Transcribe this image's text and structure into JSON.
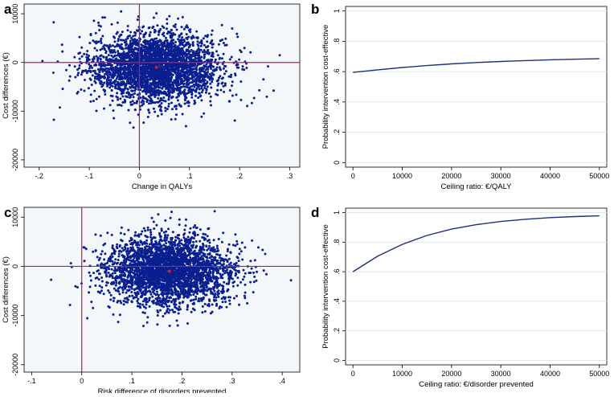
{
  "colors": {
    "scatter_point": "#0a1f8f",
    "crosshair": "#c2185b",
    "curve": "#1f2f7a",
    "mean_point": "#d0202a",
    "axis": "#000000",
    "panel_bg_cea": "#f3f7f9",
    "grid": "#dfe7ec"
  },
  "panels": [
    {
      "letter": "a"
    },
    {
      "letter": "b"
    },
    {
      "letter": "c"
    },
    {
      "letter": "d"
    }
  ],
  "chart_data": [
    {
      "type": "scatter",
      "panel": "a",
      "xlabel": "Change in QALYs",
      "ylabel": "Cost differences (€)",
      "xlim": [
        -0.23,
        0.32
      ],
      "ylim": [
        -21500,
        12000
      ],
      "xticks": [
        -0.2,
        -0.1,
        0,
        0.1,
        0.2,
        0.3
      ],
      "xtick_labels": [
        "-.2",
        "-.1",
        "0",
        ".1",
        ".2",
        ".3"
      ],
      "yticks": [
        -20000,
        -10000,
        0,
        10000
      ],
      "ytick_labels": [
        "-20000",
        "-10000",
        "0",
        "10000"
      ],
      "cloud": {
        "mean_x": 0.034,
        "mean_y": -1000,
        "sd_x": 0.065,
        "sd_y": 3500
      },
      "mean_point": {
        "x": 0.034,
        "y": -1000
      },
      "reference_lines": {
        "x": 0,
        "y": 0
      }
    },
    {
      "type": "line",
      "panel": "b",
      "xlabel": "Ceiling ratio: €/QALY",
      "ylabel": "Probability intervention cost-effective",
      "xlim": [
        -1500,
        51500
      ],
      "ylim": [
        -0.03,
        1.03
      ],
      "xticks": [
        0,
        10000,
        20000,
        30000,
        40000,
        50000
      ],
      "xtick_labels": [
        "0",
        "10000",
        "20000",
        "30000",
        "40000",
        "50000"
      ],
      "yticks": [
        0,
        0.2,
        0.4,
        0.6,
        0.8,
        1
      ],
      "ytick_labels": [
        "0",
        ".2",
        ".4",
        ".6",
        ".8",
        "1"
      ],
      "x": [
        0,
        5000,
        10000,
        15000,
        20000,
        25000,
        30000,
        35000,
        40000,
        45000,
        50000
      ],
      "y": [
        0.595,
        0.612,
        0.627,
        0.64,
        0.651,
        0.66,
        0.667,
        0.673,
        0.678,
        0.682,
        0.685
      ]
    },
    {
      "type": "scatter",
      "panel": "c",
      "xlabel": "Risk difference of disorders prevented",
      "ylabel": "Cost differences (€)",
      "xlim": [
        -0.115,
        0.435
      ],
      "ylim": [
        -21500,
        12000
      ],
      "xticks": [
        -0.1,
        0,
        0.1,
        0.2,
        0.3,
        0.4
      ],
      "xtick_labels": [
        "-.1",
        "0",
        ".1",
        ".2",
        ".3",
        ".4"
      ],
      "yticks": [
        -20000,
        -10000,
        0,
        10000
      ],
      "ytick_labels": [
        "-20000",
        "-10000",
        "0",
        "10000"
      ],
      "cloud": {
        "mean_x": 0.175,
        "mean_y": -1000,
        "sd_x": 0.062,
        "sd_y": 3500
      },
      "mean_point": {
        "x": 0.175,
        "y": -1000
      },
      "reference_lines": {
        "x": 0,
        "y": 0
      }
    },
    {
      "type": "line",
      "panel": "d",
      "xlabel": "Ceiling ratio: €/disorder prevented",
      "ylabel": "Probability intervention cost-effective",
      "xlim": [
        -1500,
        51500
      ],
      "ylim": [
        -0.03,
        1.03
      ],
      "xticks": [
        0,
        10000,
        20000,
        30000,
        40000,
        50000
      ],
      "xtick_labels": [
        "0",
        "10000",
        "20000",
        "30000",
        "40000",
        "50000"
      ],
      "yticks": [
        0,
        0.2,
        0.4,
        0.6,
        0.8,
        1
      ],
      "ytick_labels": [
        "0",
        ".2",
        ".4",
        ".6",
        ".8",
        "1"
      ],
      "x": [
        0,
        5000,
        10000,
        15000,
        20000,
        25000,
        30000,
        35000,
        40000,
        45000,
        50000
      ],
      "y": [
        0.6,
        0.705,
        0.785,
        0.845,
        0.888,
        0.918,
        0.94,
        0.955,
        0.966,
        0.973,
        0.978
      ]
    }
  ]
}
